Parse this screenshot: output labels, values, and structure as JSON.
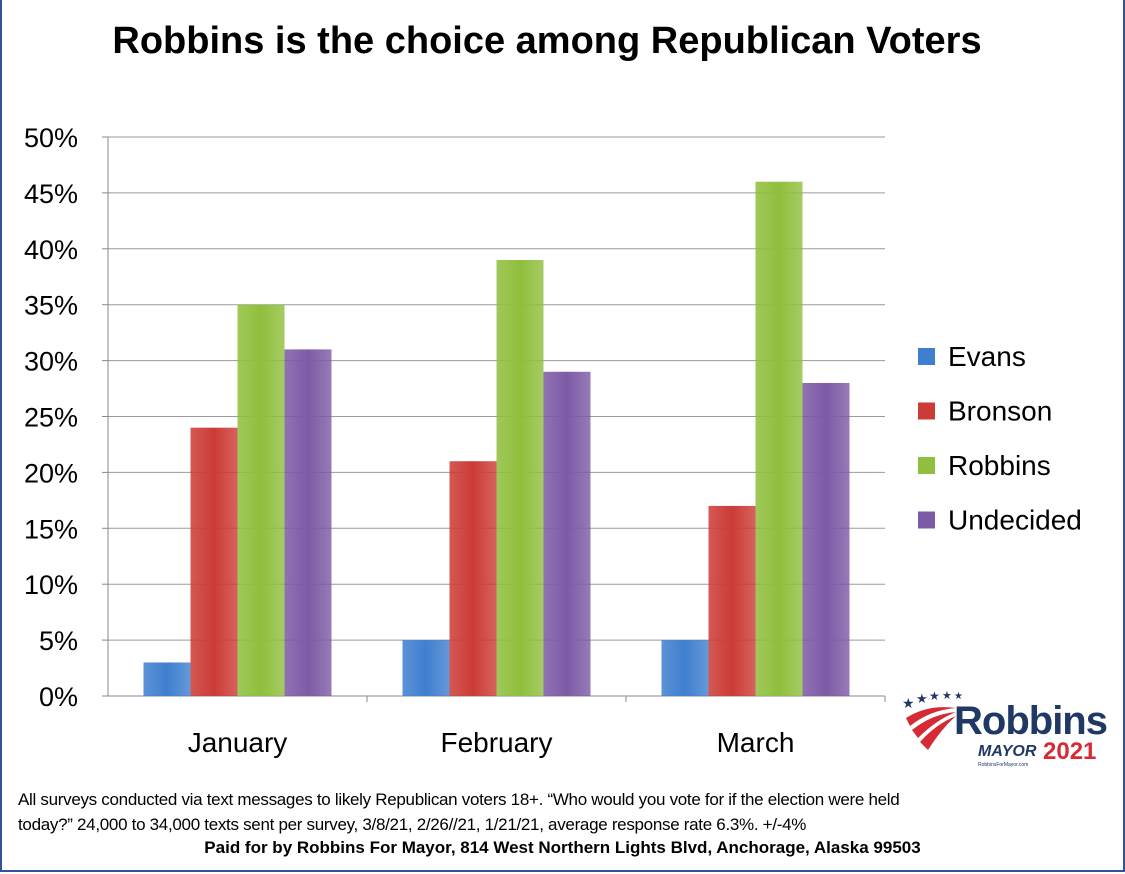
{
  "chart_data": {
    "type": "bar",
    "title": "Robbins is the choice among Republican Voters",
    "categories": [
      "January",
      "February",
      "March"
    ],
    "series": [
      {
        "name": "Evans",
        "color": "#3f7fcf",
        "values": [
          3,
          5,
          5
        ]
      },
      {
        "name": "Bronson",
        "color": "#cc3b36",
        "values": [
          24,
          21,
          17
        ]
      },
      {
        "name": "Robbins",
        "color": "#8fbf3c",
        "values": [
          35,
          39,
          46
        ]
      },
      {
        "name": "Undecided",
        "color": "#7d5aa6",
        "values": [
          31,
          29,
          28
        ]
      }
    ],
    "ylim": [
      0,
      50
    ],
    "yticks": [
      "0%",
      "5%",
      "10%",
      "15%",
      "20%",
      "25%",
      "30%",
      "35%",
      "40%",
      "45%",
      "50%"
    ],
    "grid": true,
    "legend": "right"
  },
  "footnote": {
    "line1": "All surveys conducted via text messages to likely Republican voters 18+. “Who would you vote for if the election were held",
    "line2": "today?” 24,000 to 34,000 texts sent per survey, 3/8/21, 2/26//21, 1/21/21, average response rate 6.3%. +/-4%",
    "paid_for": "Paid for by Robbins For Mayor, 814 West Northern Lights Blvd, Anchorage, Alaska 99503"
  },
  "logo": {
    "name": "Robbins",
    "office": "MAYOR",
    "year": "2021",
    "url": "RobbinsForMayor.com"
  }
}
